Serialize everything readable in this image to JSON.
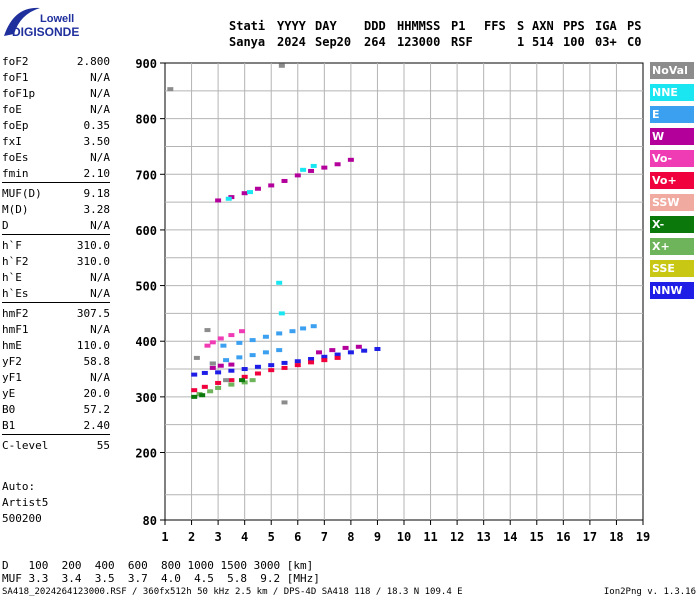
{
  "logo": {
    "line1": "Lowell",
    "line2": "DIGISONDE"
  },
  "header": {
    "labels": [
      "Stati",
      "YYYY",
      "DAY",
      "DDD",
      "HHMMSS",
      "P1",
      "FFS",
      "S",
      "AXN",
      "PPS",
      "IGA",
      "PS"
    ],
    "values": [
      "Sanya",
      "2024",
      "Sep20",
      "264",
      "123000",
      "RSF",
      "",
      "1",
      "514",
      "100",
      "03+",
      "C0"
    ]
  },
  "parameters": [
    {
      "name": "foF2",
      "value": "2.800"
    },
    {
      "name": "foF1",
      "value": "N/A"
    },
    {
      "name": "foF1p",
      "value": "N/A"
    },
    {
      "name": "foE",
      "value": "N/A"
    },
    {
      "name": "foEp",
      "value": "0.35"
    },
    {
      "name": "fxI",
      "value": "3.50"
    },
    {
      "name": "foEs",
      "value": "N/A"
    },
    {
      "name": "fmin",
      "value": "2.10"
    },
    {
      "name": "MUF(D)",
      "value": "9.18"
    },
    {
      "name": "M(D)",
      "value": "3.28"
    },
    {
      "name": "D",
      "value": "N/A"
    },
    {
      "name": "h`F",
      "value": "310.0"
    },
    {
      "name": "h`F2",
      "value": "310.0"
    },
    {
      "name": "h`E",
      "value": "N/A"
    },
    {
      "name": "h`Es",
      "value": "N/A"
    },
    {
      "name": "hmF2",
      "value": "307.5"
    },
    {
      "name": "hmF1",
      "value": "N/A"
    },
    {
      "name": "hmE",
      "value": "110.0"
    },
    {
      "name": "yF2",
      "value": "58.8"
    },
    {
      "name": "yF1",
      "value": "N/A"
    },
    {
      "name": "yE",
      "value": "20.0"
    },
    {
      "name": "B0",
      "value": "57.2"
    },
    {
      "name": "B1",
      "value": "2.40"
    },
    {
      "name": "C-level",
      "value": "55"
    }
  ],
  "auto": [
    "Auto:",
    "Artist5",
    "500200"
  ],
  "legend": [
    {
      "label": "NoVal",
      "color": "#8c8c8c"
    },
    {
      "label": "NNE",
      "color": "#19e6f0"
    },
    {
      "label": "E",
      "color": "#3ca0f0"
    },
    {
      "label": "W",
      "color": "#b4009b"
    },
    {
      "label": "Vo-",
      "color": "#f03cb4"
    },
    {
      "label": "Vo+",
      "color": "#f0003c"
    },
    {
      "label": "SSW",
      "color": "#f0aaa0"
    },
    {
      "label": "X-",
      "color": "#0a780a"
    },
    {
      "label": "X+",
      "color": "#6eb45a"
    },
    {
      "label": "SSE",
      "color": "#c8c814"
    },
    {
      "label": "NNW",
      "color": "#1e1ee6"
    }
  ],
  "muf_table": {
    "d_label": "D",
    "d_values": "100  200  400  600  800 1000 1500 3000",
    "d_unit": "[km]",
    "muf_label": "MUF",
    "muf_values": "3.3  3.4  3.5  3.7  4.0  4.5  5.8  9.2",
    "muf_unit": "[MHz]"
  },
  "footer": {
    "left": "SA418_2024264123000.RSF / 360fx512h 50 kHz 2.5 km / DPS-4D SA418 118 / 18.3 N 109.4 E",
    "right": "Ion2Png v. 1.3.16"
  },
  "chart_data": {
    "type": "scatter",
    "title": "",
    "xlabel": "",
    "ylabel": "",
    "xlim": [
      1,
      19
    ],
    "ylim": [
      80,
      900
    ],
    "xticks": [
      1,
      2,
      3,
      4,
      5,
      6,
      7,
      8,
      9,
      10,
      11,
      12,
      13,
      14,
      15,
      16,
      17,
      18,
      19
    ],
    "yticks": [
      80,
      200,
      300,
      400,
      500,
      600,
      700,
      800,
      900
    ],
    "grid": true,
    "series": [
      {
        "color": "#1e1ee6",
        "points": [
          [
            2.1,
            340
          ],
          [
            2.5,
            343
          ],
          [
            3,
            344
          ],
          [
            3.5,
            347
          ],
          [
            4,
            350
          ],
          [
            4.5,
            354
          ],
          [
            5,
            357
          ],
          [
            5.5,
            361
          ],
          [
            6,
            364
          ],
          [
            6.5,
            368
          ],
          [
            7,
            372
          ],
          [
            7.5,
            376
          ],
          [
            8,
            380
          ],
          [
            8.5,
            383
          ],
          [
            9,
            386
          ]
        ]
      },
      {
        "color": "#f0003c",
        "points": [
          [
            2.1,
            312
          ],
          [
            2.5,
            318
          ],
          [
            3,
            325
          ],
          [
            3.5,
            330
          ],
          [
            4,
            336
          ],
          [
            4.5,
            342
          ],
          [
            5,
            348
          ],
          [
            5.5,
            352
          ],
          [
            6,
            357
          ],
          [
            6.5,
            362
          ],
          [
            7,
            366
          ],
          [
            7.5,
            370
          ]
        ]
      },
      {
        "color": "#6eb45a",
        "points": [
          [
            2.3,
            305
          ],
          [
            2.7,
            310
          ],
          [
            3,
            316
          ],
          [
            3.5,
            322
          ],
          [
            4,
            326
          ],
          [
            4.3,
            330
          ]
        ]
      },
      {
        "color": "#3ca0f0",
        "points": [
          [
            2.8,
            360
          ],
          [
            3.3,
            366
          ],
          [
            3.8,
            371
          ],
          [
            4.3,
            375
          ],
          [
            4.8,
            380
          ],
          [
            5.3,
            384
          ],
          [
            3.2,
            392
          ],
          [
            3.8,
            397
          ],
          [
            4.3,
            402
          ],
          [
            4.8,
            408
          ],
          [
            5.3,
            414
          ],
          [
            5.8,
            418
          ],
          [
            6.2,
            423
          ],
          [
            6.6,
            427
          ]
        ]
      },
      {
        "color": "#b4009b",
        "points": [
          [
            2.8,
            352
          ],
          [
            3.1,
            356
          ],
          [
            3.5,
            358
          ],
          [
            6.8,
            380
          ],
          [
            7.3,
            384
          ],
          [
            7.8,
            388
          ],
          [
            8.3,
            390
          ],
          [
            3,
            653
          ],
          [
            3.5,
            659
          ],
          [
            4,
            666
          ],
          [
            4.5,
            674
          ],
          [
            5,
            680
          ],
          [
            5.5,
            688
          ],
          [
            6,
            698
          ],
          [
            6.5,
            706
          ],
          [
            7,
            712
          ],
          [
            7.5,
            718
          ],
          [
            8,
            726
          ]
        ]
      },
      {
        "color": "#19e6f0",
        "points": [
          [
            6.2,
            708
          ],
          [
            6.6,
            715
          ],
          [
            3.4,
            656
          ],
          [
            4.2,
            668
          ],
          [
            5.3,
            505
          ],
          [
            5.4,
            450
          ]
        ]
      },
      {
        "color": "#f03cb4",
        "points": [
          [
            2.6,
            392
          ],
          [
            2.8,
            398
          ],
          [
            3.1,
            405
          ],
          [
            3.5,
            411
          ],
          [
            3.9,
            418
          ]
        ]
      },
      {
        "color": "#0a780a",
        "points": [
          [
            2.1,
            300
          ],
          [
            2.4,
            303
          ],
          [
            3.9,
            330
          ]
        ]
      },
      {
        "color": "#8c8c8c",
        "points": [
          [
            2.2,
            370
          ],
          [
            2.6,
            420
          ],
          [
            2.8,
            360
          ],
          [
            3.3,
            330
          ],
          [
            1.2,
            853
          ],
          [
            5.4,
            895
          ],
          [
            5.5,
            290
          ]
        ]
      }
    ]
  }
}
